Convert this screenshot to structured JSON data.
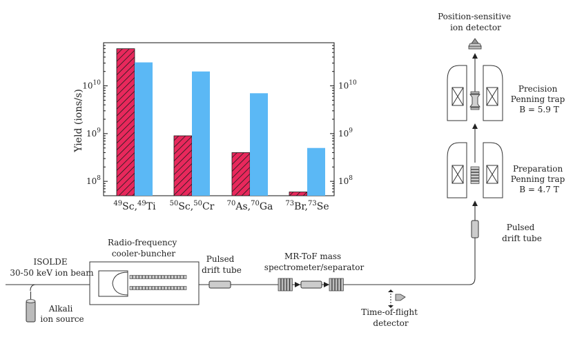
{
  "chart_data": {
    "type": "bar",
    "ylabel": "Yield (ions/s)",
    "yscale": "log",
    "ylim": [
      50000000,
      80000000000
    ],
    "ticks": [
      {
        "value": 100000000,
        "label": "10^8"
      },
      {
        "value": 1000000000,
        "label": "10^9"
      },
      {
        "value": 10000000000,
        "label": "10^10"
      }
    ],
    "categories": [
      {
        "parts": [
          [
            "49",
            "Sc,"
          ],
          [
            "49",
            "Ti"
          ]
        ]
      },
      {
        "parts": [
          [
            "50",
            "Sc,"
          ],
          [
            "50",
            "Cr"
          ]
        ]
      },
      {
        "parts": [
          [
            "70",
            "As,"
          ],
          [
            "70",
            "Ga"
          ]
        ]
      },
      {
        "parts": [
          [
            "73",
            "Br,"
          ],
          [
            "73",
            "Se"
          ]
        ]
      }
    ],
    "series": [
      {
        "values": [
          60000000000,
          900000000,
          400000000,
          60000000
        ],
        "color": "#e8285c",
        "pattern": "hatched"
      },
      {
        "values": [
          31000000000,
          20000000000,
          7000000000,
          500000000
        ],
        "color": "#5bb8f5",
        "pattern": "solid"
      }
    ]
  },
  "diagram": {
    "labels": {
      "isolde": [
        "ISOLDE",
        "30-50 keV ion beam"
      ],
      "alkali": [
        "Alkali",
        "ion source"
      ],
      "rfq": [
        "Radio-frequency",
        "cooler-buncher"
      ],
      "drift1": [
        "Pulsed",
        "drift tube"
      ],
      "mrtof": [
        "MR-ToF mass",
        "spectrometer/separator"
      ],
      "tof": [
        "Time-of-flight",
        "detector"
      ],
      "drift2": [
        "Pulsed",
        "drift tube"
      ],
      "prep": [
        "Preparation",
        "Penning trap",
        "B = 4.7 T"
      ],
      "prec": [
        "Precision",
        "Penning trap",
        "B = 5.9 T"
      ],
      "psd": [
        "Position-sensitive",
        "ion detector"
      ]
    }
  }
}
